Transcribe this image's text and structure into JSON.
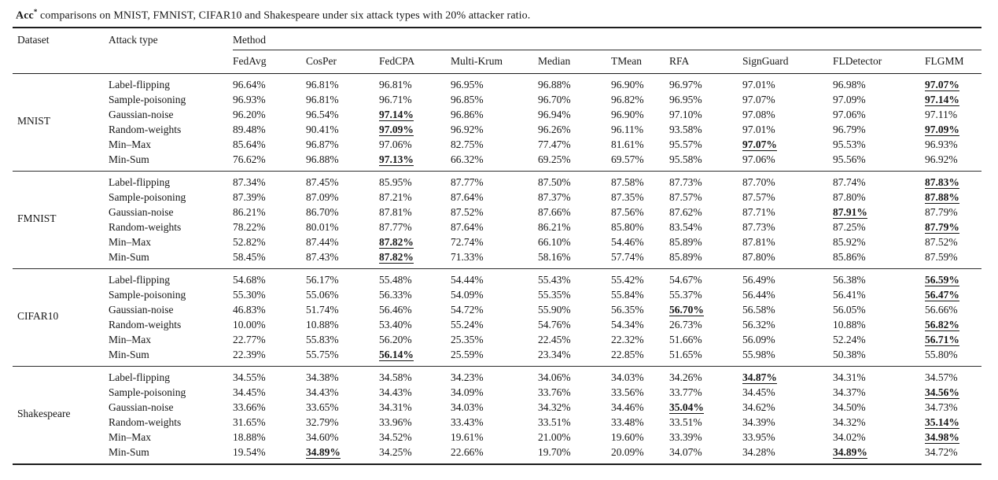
{
  "caption": {
    "metric": "Acc",
    "sup": "*",
    "text": " comparisons on MNIST, FMNIST, CIFAR10 and Shakespeare under six attack types with 20% attacker ratio."
  },
  "table": {
    "dataset_header": "Dataset",
    "attack_header": "Attack type",
    "method_header": "Method",
    "methods": [
      "FedAvg",
      "CosPer",
      "FedCPA",
      "Multi-Krum",
      "Median",
      "TMean",
      "RFA",
      "SignGuard",
      "FLDetector",
      "FLGMM"
    ],
    "groups": [
      {
        "dataset": "MNIST",
        "rows": [
          {
            "attack": "Label-flipping",
            "values": [
              "96.64%",
              "96.81%",
              "96.81%",
              "96.95%",
              "96.88%",
              "96.90%",
              "96.97%",
              "97.01%",
              "96.98%",
              "97.07%"
            ],
            "best": [
              9
            ]
          },
          {
            "attack": "Sample-poisoning",
            "values": [
              "96.93%",
              "96.81%",
              "96.71%",
              "96.85%",
              "96.70%",
              "96.82%",
              "96.95%",
              "97.07%",
              "97.09%",
              "97.14%"
            ],
            "best": [
              9
            ]
          },
          {
            "attack": "Gaussian-noise",
            "values": [
              "96.20%",
              "96.54%",
              "97.14%",
              "96.86%",
              "96.94%",
              "96.90%",
              "97.10%",
              "97.08%",
              "97.06%",
              "97.11%"
            ],
            "best": [
              2
            ]
          },
          {
            "attack": "Random-weights",
            "values": [
              "89.48%",
              "90.41%",
              "97.09%",
              "96.92%",
              "96.26%",
              "96.11%",
              "93.58%",
              "97.01%",
              "96.79%",
              "97.09%"
            ],
            "best": [
              2,
              9
            ]
          },
          {
            "attack": "Min–Max",
            "values": [
              "85.64%",
              "96.87%",
              "97.06%",
              "82.75%",
              "77.47%",
              "81.61%",
              "95.57%",
              "97.07%",
              "95.53%",
              "96.93%"
            ],
            "best": [
              7
            ]
          },
          {
            "attack": "Min-Sum",
            "values": [
              "76.62%",
              "96.88%",
              "97.13%",
              "66.32%",
              "69.25%",
              "69.57%",
              "95.58%",
              "97.06%",
              "95.56%",
              "96.92%"
            ],
            "best": [
              2
            ]
          }
        ]
      },
      {
        "dataset": "FMNIST",
        "rows": [
          {
            "attack": "Label-flipping",
            "values": [
              "87.34%",
              "87.45%",
              "85.95%",
              "87.77%",
              "87.50%",
              "87.58%",
              "87.73%",
              "87.70%",
              "87.74%",
              "87.83%"
            ],
            "best": [
              9
            ]
          },
          {
            "attack": "Sample-poisoning",
            "values": [
              "87.39%",
              "87.09%",
              "87.21%",
              "87.64%",
              "87.37%",
              "87.35%",
              "87.57%",
              "87.57%",
              "87.80%",
              "87.88%"
            ],
            "best": [
              9
            ]
          },
          {
            "attack": "Gaussian-noise",
            "values": [
              "86.21%",
              "86.70%",
              "87.81%",
              "87.52%",
              "87.66%",
              "87.56%",
              "87.62%",
              "87.71%",
              "87.91%",
              "87.79%"
            ],
            "best": [
              8
            ]
          },
          {
            "attack": "Random-weights",
            "values": [
              "78.22%",
              "80.01%",
              "87.77%",
              "87.64%",
              "86.21%",
              "85.80%",
              "83.54%",
              "87.73%",
              "87.25%",
              "87.79%"
            ],
            "best": [
              9
            ]
          },
          {
            "attack": "Min–Max",
            "values": [
              "52.82%",
              "87.44%",
              "87.82%",
              "72.74%",
              "66.10%",
              "54.46%",
              "85.89%",
              "87.81%",
              "85.92%",
              "87.52%"
            ],
            "best": [
              2
            ]
          },
          {
            "attack": "Min-Sum",
            "values": [
              "58.45%",
              "87.43%",
              "87.82%",
              "71.33%",
              "58.16%",
              "57.74%",
              "85.89%",
              "87.80%",
              "85.86%",
              "87.59%"
            ],
            "best": [
              2
            ]
          }
        ]
      },
      {
        "dataset": "CIFAR10",
        "rows": [
          {
            "attack": "Label-flipping",
            "values": [
              "54.68%",
              "56.17%",
              "55.48%",
              "54.44%",
              "55.43%",
              "55.42%",
              "54.67%",
              "56.49%",
              "56.38%",
              "56.59%"
            ],
            "best": [
              9
            ]
          },
          {
            "attack": "Sample-poisoning",
            "values": [
              "55.30%",
              "55.06%",
              "56.33%",
              "54.09%",
              "55.35%",
              "55.84%",
              "55.37%",
              "56.44%",
              "56.41%",
              "56.47%"
            ],
            "best": [
              9
            ]
          },
          {
            "attack": "Gaussian-noise",
            "values": [
              "46.83%",
              "51.74%",
              "56.46%",
              "54.72%",
              "55.90%",
              "56.35%",
              "56.70%",
              "56.58%",
              "56.05%",
              "56.66%"
            ],
            "best": [
              6
            ]
          },
          {
            "attack": "Random-weights",
            "values": [
              "10.00%",
              "10.88%",
              "53.40%",
              "55.24%",
              "54.76%",
              "54.34%",
              "26.73%",
              "56.32%",
              "10.88%",
              "56.82%"
            ],
            "best": [
              9
            ]
          },
          {
            "attack": "Min–Max",
            "values": [
              "22.77%",
              "55.83%",
              "56.20%",
              "25.35%",
              "22.45%",
              "22.32%",
              "51.66%",
              "56.09%",
              "52.24%",
              "56.71%"
            ],
            "best": [
              9
            ]
          },
          {
            "attack": "Min-Sum",
            "values": [
              "22.39%",
              "55.75%",
              "56.14%",
              "25.59%",
              "23.34%",
              "22.85%",
              "51.65%",
              "55.98%",
              "50.38%",
              "55.80%"
            ],
            "best": [
              2
            ]
          }
        ]
      },
      {
        "dataset": "Shakespeare",
        "rows": [
          {
            "attack": "Label-flipping",
            "values": [
              "34.55%",
              "34.38%",
              "34.58%",
              "34.23%",
              "34.06%",
              "34.03%",
              "34.26%",
              "34.87%",
              "34.31%",
              "34.57%"
            ],
            "best": [
              7
            ]
          },
          {
            "attack": "Sample-poisoning",
            "values": [
              "34.45%",
              "34.43%",
              "34.43%",
              "34.09%",
              "33.76%",
              "33.56%",
              "33.77%",
              "34.45%",
              "34.37%",
              "34.56%"
            ],
            "best": [
              9
            ]
          },
          {
            "attack": "Gaussian-noise",
            "values": [
              "33.66%",
              "33.65%",
              "34.31%",
              "34.03%",
              "34.32%",
              "34.46%",
              "35.04%",
              "34.62%",
              "34.50%",
              "34.73%"
            ],
            "best": [
              6
            ]
          },
          {
            "attack": "Random-weights",
            "values": [
              "31.65%",
              "32.79%",
              "33.96%",
              "33.43%",
              "33.51%",
              "33.48%",
              "33.51%",
              "34.39%",
              "34.32%",
              "35.14%"
            ],
            "best": [
              9
            ]
          },
          {
            "attack": "Min–Max",
            "values": [
              "18.88%",
              "34.60%",
              "34.52%",
              "19.61%",
              "21.00%",
              "19.60%",
              "33.39%",
              "33.95%",
              "34.02%",
              "34.98%"
            ],
            "best": [
              9
            ]
          },
          {
            "attack": "Min-Sum",
            "values": [
              "19.54%",
              "34.89%",
              "34.25%",
              "22.66%",
              "19.70%",
              "20.09%",
              "34.07%",
              "34.28%",
              "34.89%",
              "34.72%"
            ],
            "best": [
              1,
              8
            ]
          }
        ]
      }
    ]
  }
}
